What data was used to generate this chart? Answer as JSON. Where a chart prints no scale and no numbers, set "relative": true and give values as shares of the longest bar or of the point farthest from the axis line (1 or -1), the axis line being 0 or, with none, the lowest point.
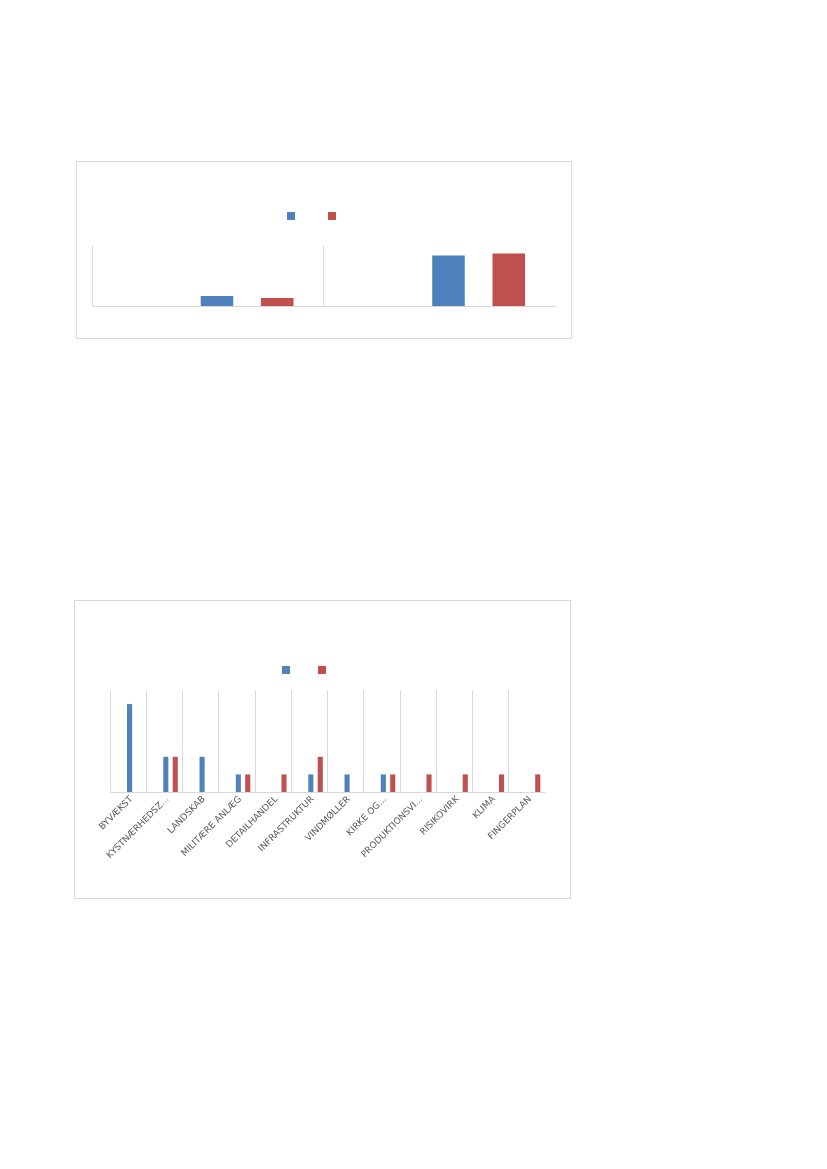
{
  "chart_data": [
    {
      "type": "bar",
      "relative": true,
      "categories": [
        null,
        null
      ],
      "grid": "x",
      "series": [
        {
          "color": "#4f81bd",
          "values": [
            0.19,
            0.96
          ]
        },
        {
          "color": "#c0504d",
          "values": [
            0.15,
            1
          ]
        }
      ]
    },
    {
      "type": "bar",
      "relative": true,
      "categories": [
        "BYVÆKST",
        "KYSTNÆRHEDSZ...",
        "LANDSKAB",
        "MILITÆRE ANLÆG",
        "DETAILHANDEL",
        "INFRASTRUKTUR",
        "VINDMØLLER",
        "KIRKE OG...",
        "PRODUKTIONSVI...",
        "RISIKOVIRK",
        "KLIMA",
        "FINGERPLAN"
      ],
      "grid": "x",
      "series": [
        {
          "color": "#4f81bd",
          "values": [
            1,
            0.4,
            0.4,
            0.2,
            0,
            0.2,
            0.2,
            0.2,
            0,
            0,
            0,
            0
          ]
        },
        {
          "color": "#c0504d",
          "values": [
            0,
            0.4,
            0,
            0.2,
            0.2,
            0.4,
            0,
            0.2,
            0.2,
            0.2,
            0.2,
            0.2
          ]
        }
      ]
    }
  ]
}
